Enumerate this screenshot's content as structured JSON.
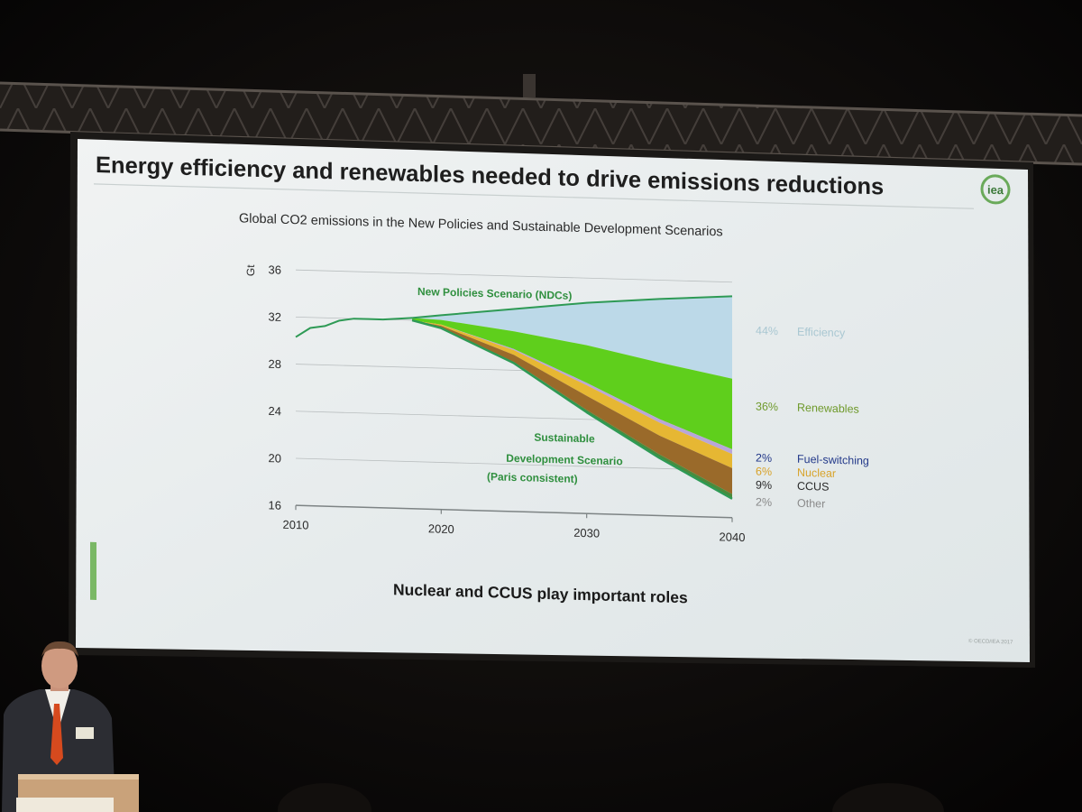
{
  "slide": {
    "title": "Energy efficiency and renewables needed to drive emissions reductions",
    "logo_text": "iea",
    "footer": "Nuclear and CCUS play important roles",
    "copyright": "© OECD/IEA 2017"
  },
  "colors": {
    "efficiency": "#bcd9e8",
    "renewables": "#5fcf1c",
    "fuel_switching": "#b9a6d8",
    "nuclear": "#e6b733",
    "ccus": "#9a6a2a",
    "other": "#4b8a3c",
    "line": "#2e9a55",
    "accent_green": "#6aaa5a"
  },
  "chart_data": {
    "type": "area",
    "title": "Global CO2 emissions in the New Policies and Sustainable Development Scenarios",
    "ylabel": "Gt",
    "xlabel": "",
    "xlim": [
      2010,
      2040
    ],
    "ylim": [
      16,
      36
    ],
    "yticks": [
      16,
      20,
      24,
      28,
      32,
      36
    ],
    "xticks": [
      2010,
      2020,
      2030,
      2040
    ],
    "grid": true,
    "historical": {
      "x": [
        2010,
        2011,
        2012,
        2013,
        2014,
        2015,
        2016,
        2017,
        2018
      ],
      "y": [
        30.3,
        31.1,
        31.3,
        31.8,
        32.0,
        32.0,
        32.0,
        32.1,
        32.2
      ]
    },
    "new_policies": {
      "name": "New Policies Scenario (NDCs)",
      "x": [
        2018,
        2020,
        2025,
        2030,
        2035,
        2040
      ],
      "y": [
        32.2,
        32.5,
        33.2,
        33.9,
        34.4,
        34.8
      ]
    },
    "sustainable_development": {
      "name_lines": [
        "Sustainable",
        "Development  Scenario",
        "(Paris consistent)"
      ],
      "x": [
        2018,
        2020,
        2025,
        2030,
        2035,
        2040
      ],
      "y": [
        32.0,
        31.4,
        28.6,
        24.6,
        20.9,
        17.6
      ]
    },
    "wedges": [
      {
        "name": "Efficiency",
        "percent": "44%",
        "top": [
          32.2,
          32.5,
          33.2,
          33.9,
          34.4,
          34.8
        ],
        "bottom": [
          32.2,
          32.1,
          31.3,
          30.3,
          29.0,
          27.8
        ]
      },
      {
        "name": "Renewables",
        "percent": "36%",
        "top": [
          32.2,
          32.1,
          31.3,
          30.3,
          29.0,
          27.8
        ],
        "bottom": [
          32.0,
          31.7,
          29.8,
          27.1,
          24.2,
          21.8
        ]
      },
      {
        "name": "Fuel-switching",
        "percent": "2%",
        "top": [
          32.0,
          31.7,
          29.8,
          27.1,
          24.2,
          21.8
        ],
        "bottom": [
          32.0,
          31.7,
          29.7,
          26.9,
          23.9,
          21.4
        ]
      },
      {
        "name": "Nuclear",
        "percent": "6%",
        "top": [
          32.0,
          31.7,
          29.7,
          26.9,
          23.9,
          21.4
        ],
        "bottom": [
          32.0,
          31.6,
          29.3,
          26.0,
          22.8,
          20.2
        ]
      },
      {
        "name": "CCUS",
        "percent": "9%",
        "top": [
          32.0,
          31.6,
          29.3,
          26.0,
          22.8,
          20.2
        ],
        "bottom": [
          32.0,
          31.4,
          28.7,
          24.8,
          21.2,
          18.0
        ]
      },
      {
        "name": "Other",
        "percent": "2%",
        "top": [
          32.0,
          31.4,
          28.7,
          24.8,
          21.2,
          18.0
        ],
        "bottom": [
          32.0,
          31.4,
          28.6,
          24.6,
          20.9,
          17.6
        ]
      }
    ]
  }
}
